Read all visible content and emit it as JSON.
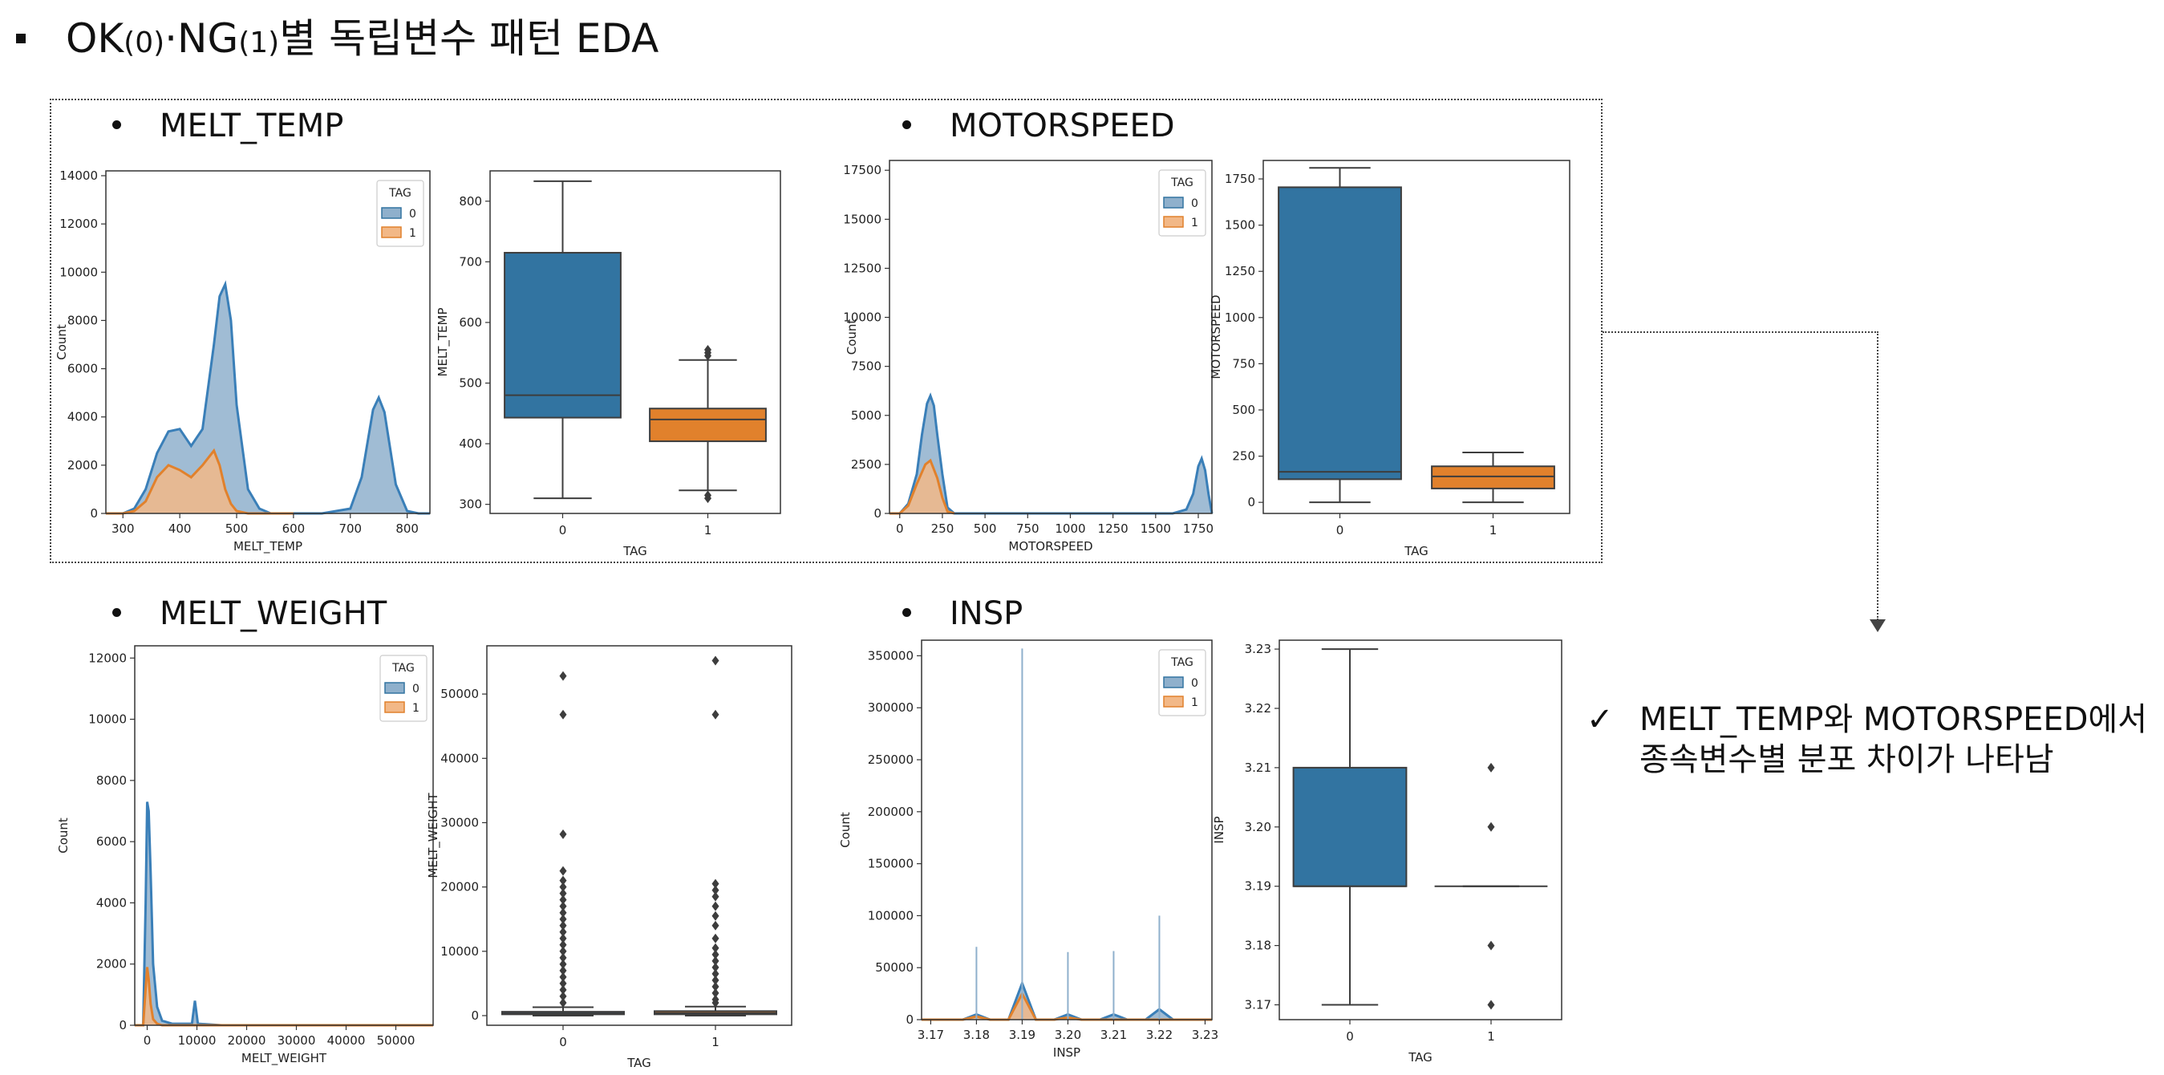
{
  "title": {
    "main_a": "OK",
    "paren_a": "(0)",
    "sep": "·NG",
    "paren_b": "(1)",
    "main_b": "별 독립변수 패턴 EDA"
  },
  "sections": {
    "melt_temp": "MELT_TEMP",
    "motorspeed": "MOTORSPEED",
    "melt_weight": "MELT_WEIGHT",
    "insp": "INSP"
  },
  "note": {
    "check": "✓",
    "line1": "MELT_TEMP와 MOTORSPEED에서",
    "line2": "종속변수별 분포 차이가 나타남"
  },
  "colors": {
    "tag0": "#3274a1",
    "tag1": "#e1812c",
    "tag0_hist": "#8fb0cc",
    "tag1_hist": "#f2b887",
    "kde0": "#3a7fb8",
    "outline": "#333333"
  },
  "legend": {
    "title": "TAG",
    "labels": [
      "0",
      "1"
    ]
  },
  "chart_data": [
    {
      "id": "melt_temp_hist",
      "type": "area",
      "xlabel": "MELT_TEMP",
      "ylabel": "Count",
      "xlim": [
        270,
        840
      ],
      "ylim": [
        0,
        14200
      ],
      "xticks": [
        300,
        400,
        500,
        600,
        700,
        800
      ],
      "yticks": [
        0,
        2000,
        4000,
        6000,
        8000,
        10000,
        12000,
        14000
      ],
      "legend_title": "TAG",
      "series": [
        {
          "name": "0",
          "x": [
            270,
            300,
            320,
            340,
            360,
            380,
            400,
            420,
            440,
            460,
            470,
            480,
            490,
            500,
            520,
            540,
            560,
            600,
            650,
            700,
            720,
            740,
            750,
            760,
            780,
            800,
            820,
            840
          ],
          "values": [
            0,
            0,
            200,
            1000,
            2500,
            3400,
            3500,
            2800,
            3500,
            7000,
            9000,
            9500,
            8000,
            4500,
            1000,
            200,
            0,
            0,
            0,
            200,
            1500,
            4300,
            4800,
            4200,
            1200,
            100,
            0,
            0
          ]
        },
        {
          "name": "1",
          "x": [
            270,
            300,
            320,
            340,
            360,
            380,
            400,
            420,
            440,
            460,
            470,
            480,
            490,
            500,
            520,
            540,
            560,
            600
          ],
          "values": [
            0,
            0,
            100,
            500,
            1500,
            2000,
            1800,
            1500,
            2000,
            2600,
            2000,
            1000,
            400,
            100,
            0,
            0,
            0,
            0
          ]
        }
      ]
    },
    {
      "id": "melt_temp_box",
      "type": "box",
      "xlabel": "TAG",
      "ylabel": "MELT_TEMP",
      "ylim": [
        285,
        850
      ],
      "yticks": [
        300,
        400,
        500,
        600,
        700,
        800
      ],
      "categories": [
        "0",
        "1"
      ],
      "boxes": [
        {
          "name": "0",
          "whislo": 310,
          "q1": 443,
          "med": 480,
          "q3": 715,
          "whishi": 833,
          "fliers": []
        },
        {
          "name": "1",
          "whislo": 323,
          "q1": 404,
          "med": 440,
          "q3": 458,
          "whishi": 538,
          "fliers": [
            310,
            315,
            545,
            550,
            555
          ]
        }
      ]
    },
    {
      "id": "motorspeed_hist",
      "type": "area",
      "xlabel": "MOTORSPEED",
      "ylabel": "Count",
      "xlim": [
        -60,
        1830
      ],
      "ylim": [
        0,
        18000
      ],
      "xticks": [
        0,
        250,
        500,
        750,
        1000,
        1250,
        1500,
        1750
      ],
      "yticks": [
        0,
        2500,
        5000,
        7500,
        10000,
        12500,
        15000,
        17500
      ],
      "legend_title": "TAG",
      "series": [
        {
          "name": "0",
          "x": [
            -60,
            0,
            50,
            100,
            130,
            160,
            180,
            200,
            220,
            250,
            280,
            320,
            400,
            800,
            1200,
            1600,
            1680,
            1720,
            1750,
            1770,
            1790,
            1810,
            1830
          ],
          "values": [
            0,
            0,
            500,
            2000,
            4000,
            5600,
            6000,
            5500,
            4000,
            2000,
            300,
            0,
            0,
            0,
            0,
            0,
            200,
            1000,
            2400,
            2800,
            2200,
            1000,
            0
          ]
        },
        {
          "name": "1",
          "x": [
            -60,
            0,
            50,
            100,
            150,
            180,
            220,
            250,
            280,
            320
          ],
          "values": [
            0,
            0,
            400,
            1500,
            2500,
            2700,
            1800,
            800,
            100,
            0
          ]
        }
      ]
    },
    {
      "id": "motorspeed_box",
      "type": "box",
      "xlabel": "TAG",
      "ylabel": "MOTORSPEED",
      "ylim": [
        -60,
        1850
      ],
      "yticks": [
        0,
        250,
        500,
        750,
        1000,
        1250,
        1500,
        1750
      ],
      "categories": [
        "0",
        "1"
      ],
      "boxes": [
        {
          "name": "0",
          "whislo": 0,
          "q1": 125,
          "med": 165,
          "q3": 1705,
          "whishi": 1810,
          "fliers": []
        },
        {
          "name": "1",
          "whislo": 0,
          "q1": 75,
          "med": 140,
          "q3": 195,
          "whishi": 270,
          "fliers": []
        }
      ]
    },
    {
      "id": "melt_weight_hist",
      "type": "area",
      "xlabel": "MELT_WEIGHT",
      "ylabel": "Count",
      "xlim": [
        -2500,
        57500
      ],
      "ylim": [
        0,
        12400
      ],
      "xticks": [
        0,
        10000,
        20000,
        30000,
        40000,
        50000
      ],
      "yticks": [
        0,
        2000,
        4000,
        6000,
        8000,
        10000,
        12000
      ],
      "legend_title": "TAG",
      "series": [
        {
          "name": "0",
          "x": [
            -2500,
            -800,
            -300,
            0,
            300,
            700,
            1200,
            2000,
            3000,
            5000,
            9000,
            9600,
            10200,
            15000,
            30000,
            57500
          ],
          "values": [
            0,
            0,
            4000,
            7300,
            7000,
            5000,
            2000,
            600,
            150,
            50,
            50,
            800,
            50,
            0,
            0,
            0
          ]
        },
        {
          "name": "1",
          "x": [
            -2500,
            -800,
            -300,
            0,
            300,
            700,
            1200,
            2000,
            3000,
            57500
          ],
          "values": [
            0,
            0,
            1200,
            1900,
            1500,
            700,
            200,
            50,
            0,
            0
          ]
        }
      ]
    },
    {
      "id": "melt_weight_box",
      "type": "box",
      "xlabel": "TAG",
      "ylabel": "MELT_WEIGHT",
      "ylim": [
        -1500,
        57500
      ],
      "yticks": [
        0,
        10000,
        20000,
        30000,
        40000,
        50000
      ],
      "categories": [
        "0",
        "1"
      ],
      "boxes": [
        {
          "name": "0",
          "whislo": 0,
          "q1": 200,
          "med": 350,
          "q3": 600,
          "whishi": 1300,
          "fliers": [
            52800,
            46800,
            28200,
            22500,
            21000,
            20000,
            19000,
            18000,
            17000,
            16000,
            15000,
            14000,
            13000,
            12000,
            11000,
            10000,
            9000,
            8000,
            7000,
            6000,
            5000,
            4000,
            3000,
            2000
          ]
        },
        {
          "name": "1",
          "whislo": 0,
          "q1": 200,
          "med": 400,
          "q3": 700,
          "whishi": 1400,
          "fliers": [
            55200,
            46800,
            20500,
            19500,
            18500,
            17000,
            15500,
            14000,
            12000,
            10500,
            9500,
            8500,
            7500,
            6500,
            5500,
            4500,
            3500,
            2500,
            2000
          ]
        }
      ]
    },
    {
      "id": "insp_hist",
      "type": "area",
      "xlabel": "INSP",
      "ylabel": "Count",
      "xlim": [
        3.168,
        3.2315
      ],
      "ylim": [
        0,
        365000
      ],
      "xticks": [
        3.17,
        3.18,
        3.19,
        3.2,
        3.21,
        3.22,
        3.23
      ],
      "xticklabels": [
        "3.17",
        "3.18",
        "3.19",
        "3.20",
        "3.21",
        "3.22",
        "3.23"
      ],
      "yticks": [
        0,
        50000,
        100000,
        150000,
        200000,
        250000,
        300000,
        350000
      ],
      "legend_title": "TAG",
      "series": [
        {
          "name": "0",
          "x": [
            3.168,
            3.177,
            3.18,
            3.183,
            3.187,
            3.19,
            3.193,
            3.197,
            3.2,
            3.203,
            3.207,
            3.21,
            3.213,
            3.217,
            3.22,
            3.223,
            3.2315
          ],
          "values": [
            0,
            0,
            5000,
            0,
            0,
            35000,
            0,
            0,
            5000,
            0,
            0,
            5000,
            0,
            0,
            10000,
            0,
            0
          ]
        },
        {
          "name": "1",
          "x": [
            3.168,
            3.177,
            3.18,
            3.183,
            3.187,
            3.19,
            3.193,
            3.197,
            3.2,
            3.203,
            3.2315
          ],
          "values": [
            0,
            0,
            3000,
            0,
            0,
            25000,
            0,
            0,
            2000,
            0,
            0
          ]
        }
      ],
      "spikes": [
        {
          "x": 3.18,
          "value": 70000
        },
        {
          "x": 3.19,
          "value": 357000
        },
        {
          "x": 3.2,
          "value": 65000
        },
        {
          "x": 3.21,
          "value": 66000
        },
        {
          "x": 3.22,
          "value": 100000
        }
      ]
    },
    {
      "id": "insp_box",
      "type": "box",
      "xlabel": "TAG",
      "ylabel": "INSP",
      "ylim": [
        3.1675,
        3.2315
      ],
      "yticks": [
        3.17,
        3.18,
        3.19,
        3.2,
        3.21,
        3.22,
        3.23
      ],
      "yticklabels": [
        "3.17",
        "3.18",
        "3.19",
        "3.20",
        "3.21",
        "3.22",
        "3.23"
      ],
      "categories": [
        "0",
        "1"
      ],
      "boxes": [
        {
          "name": "0",
          "whislo": 3.17,
          "q1": 3.19,
          "med": 3.19,
          "q3": 3.21,
          "whishi": 3.23,
          "fliers": []
        },
        {
          "name": "1",
          "whislo": 3.19,
          "q1": 3.19,
          "med": 3.19,
          "q3": 3.19,
          "whishi": 3.19,
          "fliers": [
            3.17,
            3.18,
            3.2,
            3.21
          ]
        }
      ]
    }
  ]
}
